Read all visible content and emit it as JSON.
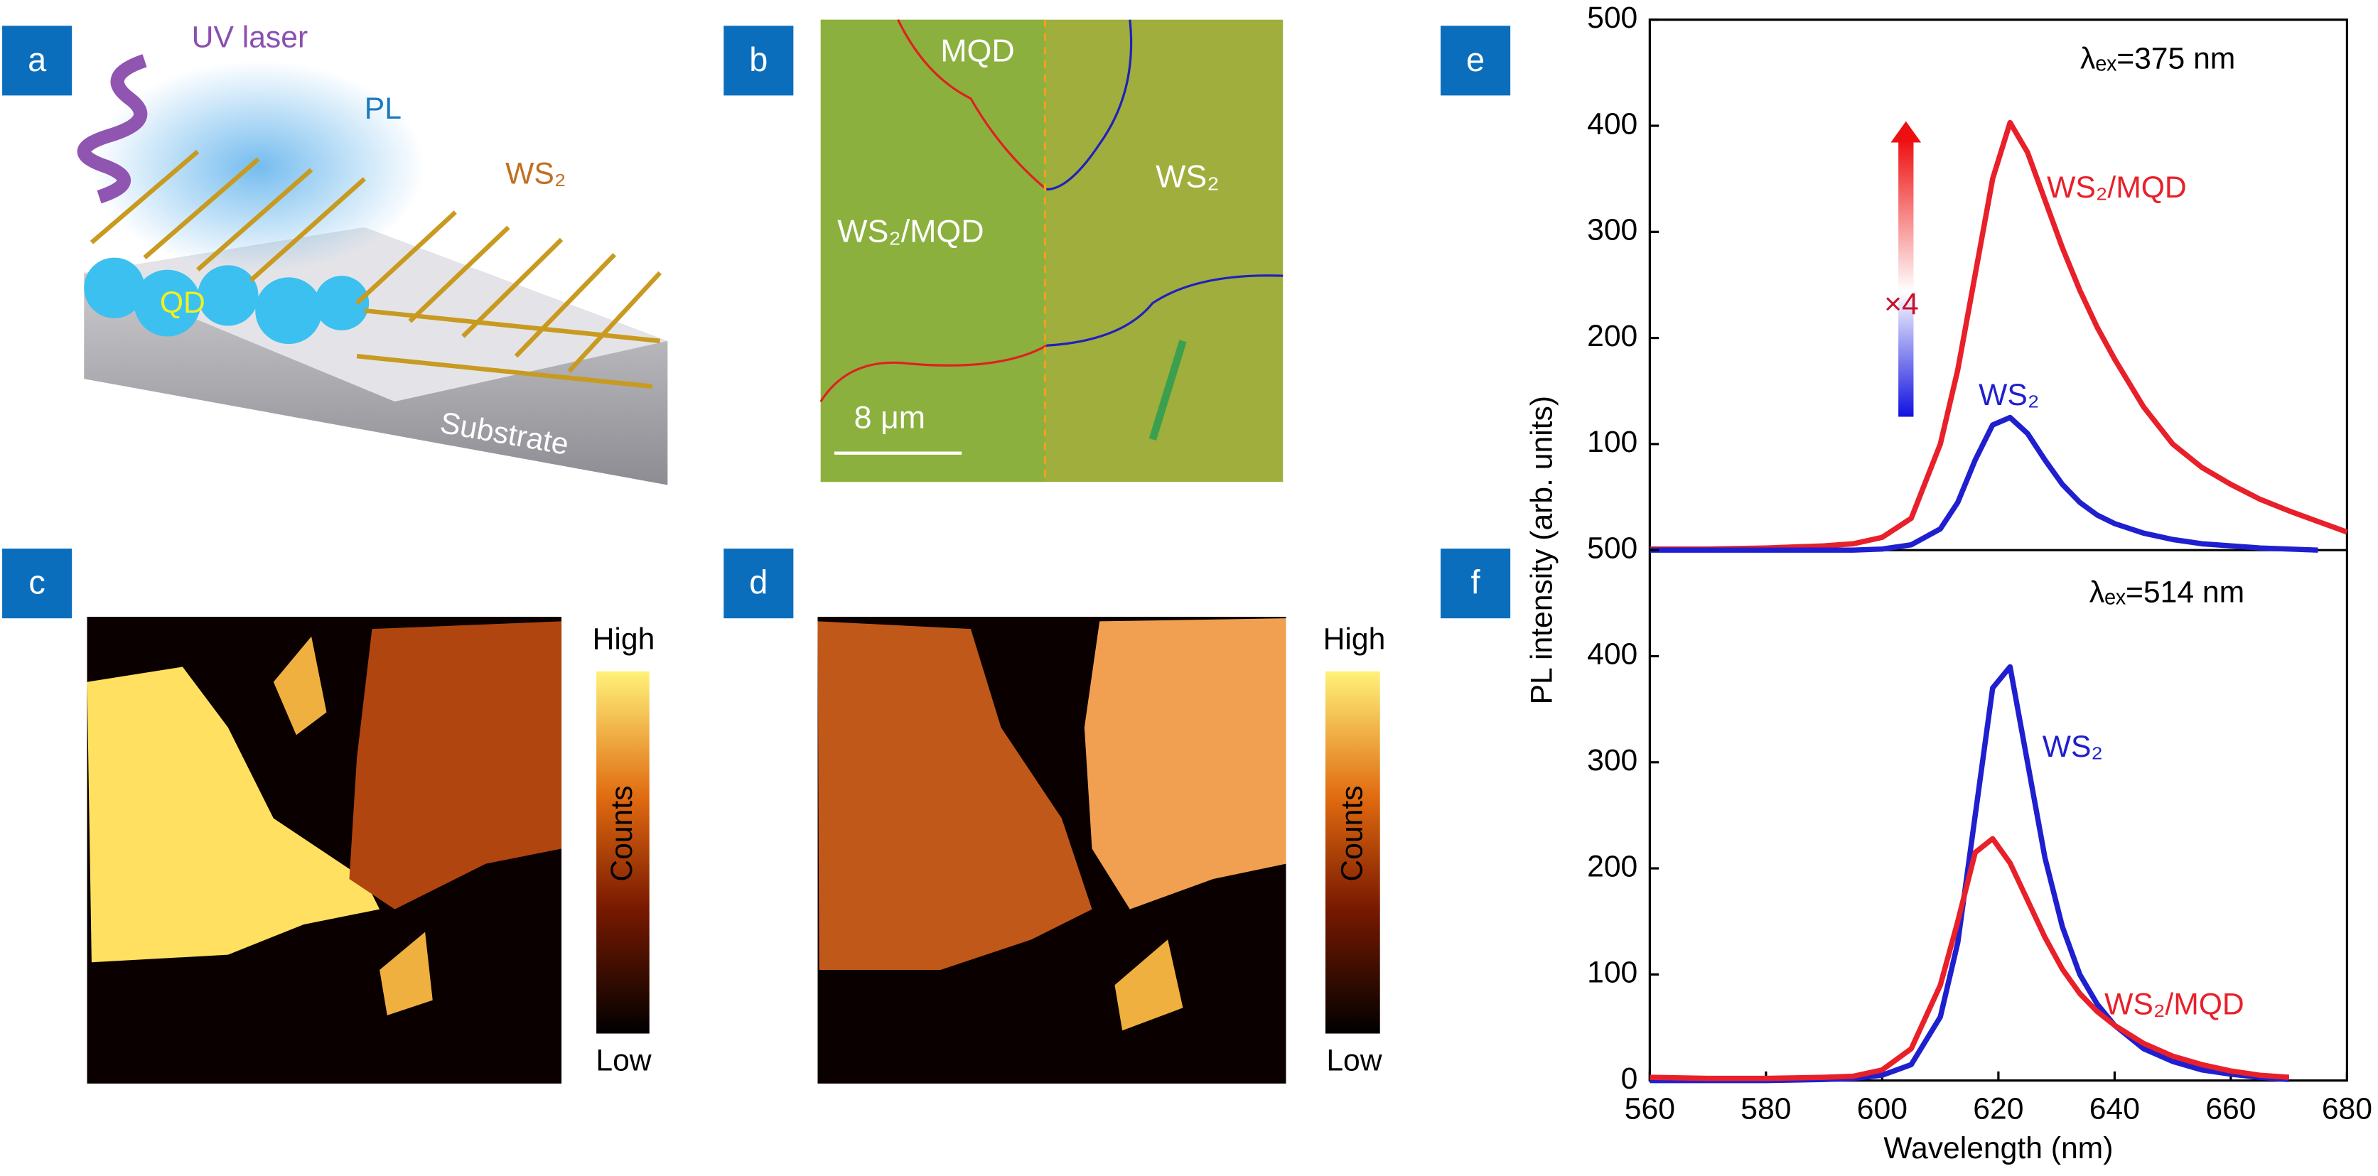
{
  "panel_labels": [
    "a",
    "b",
    "c",
    "d",
    "e",
    "f"
  ],
  "schematic": {
    "laser": "UV laser",
    "pl": "PL",
    "material": "WS₂",
    "dots": "QD",
    "substrate": "Substrate"
  },
  "micrograph": {
    "region_top": "MQD",
    "region_right": "WS₂",
    "region_left": "WS₂/MQD",
    "scale_bar": "8 μm"
  },
  "maps": [
    {
      "high": "High",
      "colorbar_label": "Counts",
      "low": "Low"
    },
    {
      "high": "High",
      "colorbar_label": "Counts",
      "low": "Low"
    }
  ],
  "ylabel": "PL intensity (arb. units)",
  "chart_data": [
    {
      "type": "line",
      "annotation": "λₑₓ=375 nm",
      "arrow_label": "×4",
      "x": [
        560,
        570,
        580,
        590,
        595,
        600,
        605,
        610,
        613,
        616,
        619,
        622,
        625,
        628,
        631,
        634,
        637,
        640,
        645,
        650,
        655,
        660,
        665,
        670,
        675,
        680
      ],
      "series": [
        {
          "name": "WS₂/MQD",
          "color": "#e8202a",
          "values": [
            1,
            1,
            2,
            4,
            6,
            12,
            30,
            100,
            170,
            260,
            350,
            403,
            375,
            330,
            285,
            245,
            210,
            180,
            135,
            100,
            78,
            62,
            48,
            37,
            27,
            17
          ]
        },
        {
          "name": "WS₂",
          "color": "#1f1fd0",
          "values": [
            0,
            0,
            0,
            0,
            0,
            1,
            5,
            20,
            45,
            85,
            118,
            125,
            110,
            85,
            62,
            45,
            33,
            25,
            16,
            10,
            6,
            4,
            2,
            1,
            0,
            null
          ]
        }
      ],
      "xlim": [
        560,
        680
      ],
      "ylim": [
        0,
        500
      ],
      "yticks": [
        100,
        200,
        300,
        400,
        500
      ]
    },
    {
      "type": "line",
      "annotation": "λₑₓ=514 nm",
      "xlabel": "Wavelength (nm)",
      "x": [
        560,
        570,
        580,
        590,
        595,
        600,
        605,
        610,
        613,
        616,
        619,
        622,
        625,
        628,
        631,
        634,
        637,
        640,
        645,
        650,
        655,
        660,
        665,
        670,
        675,
        680
      ],
      "series": [
        {
          "name": "WS₂",
          "color": "#1f1fd0",
          "values": [
            0,
            0,
            0,
            1,
            2,
            5,
            15,
            60,
            130,
            250,
            370,
            390,
            300,
            210,
            145,
            100,
            72,
            52,
            30,
            18,
            10,
            6,
            3,
            1,
            null,
            null
          ]
        },
        {
          "name": "WS₂/MQD",
          "color": "#e8202a",
          "values": [
            3,
            2,
            2,
            3,
            4,
            10,
            30,
            90,
            150,
            215,
            228,
            205,
            170,
            135,
            105,
            82,
            65,
            52,
            35,
            23,
            15,
            9,
            5,
            3,
            null,
            null
          ]
        }
      ],
      "xlim": [
        560,
        680
      ],
      "ylim": [
        0,
        500
      ],
      "yticks": [
        0,
        100,
        200,
        300,
        400,
        500
      ],
      "xticks": [
        560,
        580,
        600,
        620,
        640,
        660,
        680
      ]
    }
  ]
}
